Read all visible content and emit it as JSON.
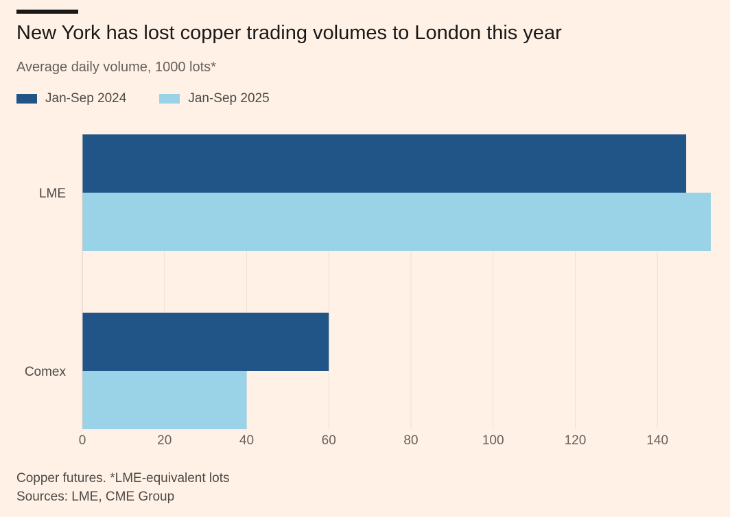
{
  "chart_data": {
    "type": "bar",
    "orientation": "horizontal",
    "title": "New York has lost copper trading volumes to London this year",
    "subtitle": "Average daily volume, 1000 lots*",
    "categories": [
      "LME",
      "Comex"
    ],
    "series": [
      {
        "name": "Jan-Sep 2024",
        "color": "#225587",
        "values": [
          147,
          60
        ]
      },
      {
        "name": "Jan-Sep 2025",
        "color": "#9ad3e8",
        "values": [
          153,
          40
        ]
      }
    ],
    "xlim": [
      0,
      153
    ],
    "xticks": [
      "0",
      "20",
      "40",
      "60",
      "80",
      "100",
      "120",
      "140"
    ],
    "grid": true,
    "legend": "top-left"
  },
  "footer": {
    "note": "Copper futures. *LME-equivalent lots",
    "sources": "Sources: LME, CME Group"
  },
  "colors": {
    "background": "#fff1e5",
    "gridline": "#ebe1d7"
  }
}
